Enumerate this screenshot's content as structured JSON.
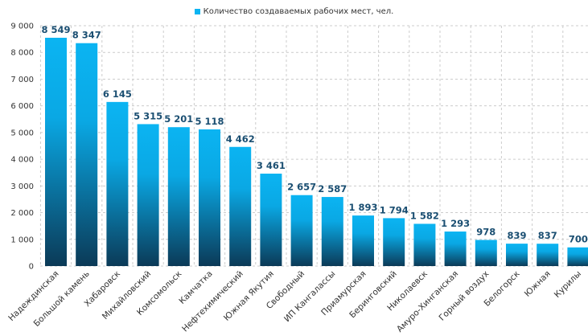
{
  "chart_data": {
    "type": "bar",
    "legend": "Количество создаваемых рабочих мест, чел.",
    "categories": [
      "Надеждинская",
      "Большой камень",
      "Хабаровск",
      "Михайловский",
      "Комсомольск",
      "Камчатка",
      "Нефтехимический",
      "Южная Якутия",
      "Свободный",
      "ИП Кангалассы",
      "Приамурская",
      "Беринговский",
      "Николаевск",
      "Амуро-Хинганская",
      "Горный воздух",
      "Белогорск",
      "Южная",
      "Курилы"
    ],
    "values": [
      8549,
      8347,
      6145,
      5315,
      5201,
      5118,
      4462,
      3461,
      2657,
      2587,
      1893,
      1794,
      1582,
      1293,
      978,
      839,
      837,
      700
    ],
    "value_labels": [
      "8 549",
      "8 347",
      "6 145",
      "5 315",
      "5 201",
      "5 118",
      "4 462",
      "3 461",
      "2 657",
      "2 587",
      "1 893",
      "1 794",
      "1 582",
      "1 293",
      "978",
      "839",
      "837",
      "700"
    ],
    "ylim": [
      0,
      9000
    ],
    "yticks": [
      0,
      1000,
      2000,
      3000,
      4000,
      5000,
      6000,
      7000,
      8000,
      9000
    ],
    "ytick_labels": [
      "0",
      "1 000",
      "2 000",
      "3 000",
      "4 000",
      "5 000",
      "6 000",
      "7 000",
      "8 000",
      "9 000"
    ],
    "grid": true,
    "legend_position": "top-center",
    "colors": {
      "bar_top": "#0bb4f2",
      "bar_bottom": "#0b3a57",
      "value_label": "#1b4f72",
      "grid": "#cccccc"
    }
  }
}
